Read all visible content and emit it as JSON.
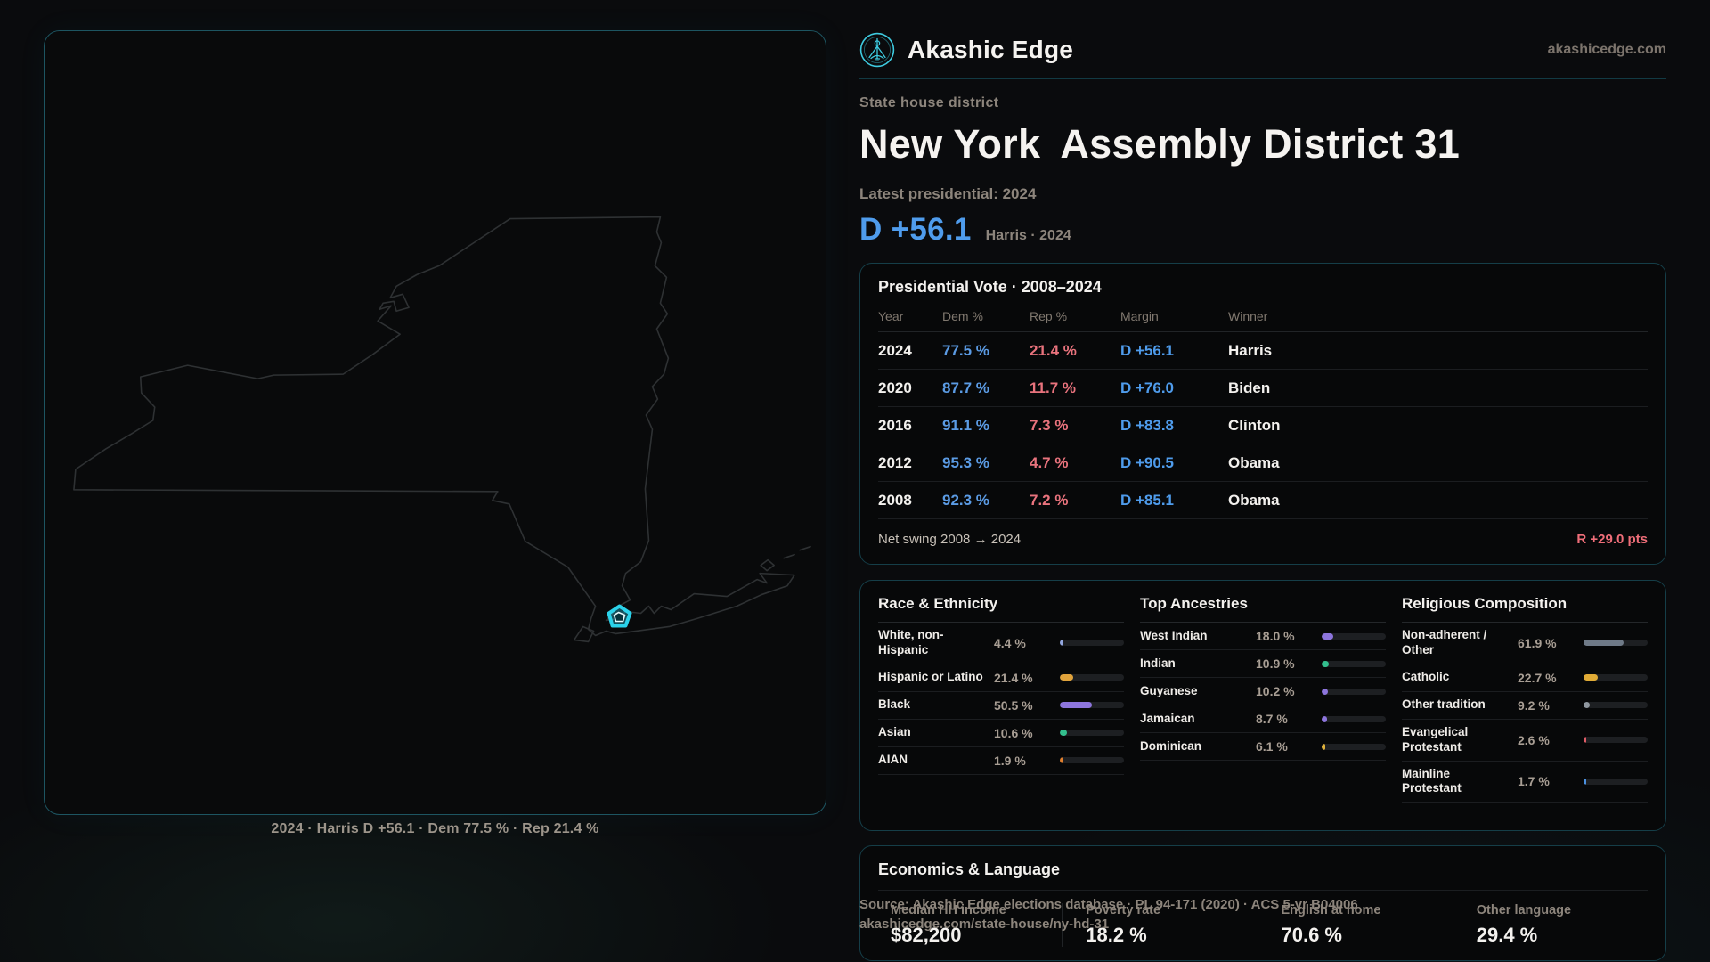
{
  "brand": {
    "name": "Akashic Edge",
    "domain": "akashicedge.com"
  },
  "header": {
    "kicker": "State house district",
    "title_parts": [
      "New York",
      "Assembly District 31"
    ],
    "latest_label": "Latest presidential: 2024",
    "headline_margin": "D +56.1",
    "headline_detail": "Harris · 2024"
  },
  "map": {
    "region": "new-york-state",
    "caption": "2024 · Harris D +56.1 · Dem 77.5 % · Rep 21.4 %"
  },
  "presidential": {
    "title": "Presidential Vote · 2008–2024",
    "columns": [
      "Year",
      "Dem %",
      "Rep %",
      "Margin",
      "Winner"
    ],
    "rows": [
      {
        "year": "2024",
        "dem": "77.5 %",
        "rep": "21.4 %",
        "margin": "D +56.1",
        "winner": "Harris"
      },
      {
        "year": "2020",
        "dem": "87.7 %",
        "rep": "11.7 %",
        "margin": "D +76.0",
        "winner": "Biden"
      },
      {
        "year": "2016",
        "dem": "91.1 %",
        "rep": "7.3 %",
        "margin": "D +83.8",
        "winner": "Clinton"
      },
      {
        "year": "2012",
        "dem": "95.3 %",
        "rep": "4.7 %",
        "margin": "D +90.5",
        "winner": "Obama"
      },
      {
        "year": "2008",
        "dem": "92.3 %",
        "rep": "7.2 %",
        "margin": "D +85.1",
        "winner": "Obama"
      }
    ],
    "net_swing_label": "Net swing 2008 → 2024",
    "net_swing_value": "R +29.0 pts"
  },
  "demographics": {
    "columns": [
      {
        "id": "race",
        "title": "Race & Ethnicity",
        "rows": [
          {
            "label": "White, non-Hispanic",
            "value": "4.4 %",
            "pct": 4.4,
            "color": "#93a7e0"
          },
          {
            "label": "Hispanic or Latino",
            "value": "21.4 %",
            "pct": 21.4,
            "color": "#e0a33c"
          },
          {
            "label": "Black",
            "value": "50.5 %",
            "pct": 50.5,
            "color": "#8d75dd"
          },
          {
            "label": "Asian",
            "value": "10.6 %",
            "pct": 10.6,
            "color": "#33bf8e"
          },
          {
            "label": "AIAN",
            "value": "1.9 %",
            "pct": 1.9,
            "color": "#e07f2e"
          }
        ]
      },
      {
        "id": "ancestries",
        "title": "Top Ancestries",
        "rows": [
          {
            "label": "West Indian",
            "value": "18.0 %",
            "pct": 18.0,
            "color": "#8d75dd"
          },
          {
            "label": "Indian",
            "value": "10.9 %",
            "pct": 10.9,
            "color": "#33bf8e"
          },
          {
            "label": "Guyanese",
            "value": "10.2 %",
            "pct": 10.2,
            "color": "#8d75dd"
          },
          {
            "label": "Jamaican",
            "value": "8.7 %",
            "pct": 8.7,
            "color": "#8d75dd"
          },
          {
            "label": "Dominican",
            "value": "6.1 %",
            "pct": 6.1,
            "color": "#e0b23c"
          }
        ]
      },
      {
        "id": "religion",
        "title": "Religious Composition",
        "rows": [
          {
            "label": "Non-adherent / Other",
            "value": "61.9 %",
            "pct": 61.9,
            "color": "#6f7a88"
          },
          {
            "label": "Catholic",
            "value": "22.7 %",
            "pct": 22.7,
            "color": "#e0ab36"
          },
          {
            "label": "Other tradition",
            "value": "9.2 %",
            "pct": 9.2,
            "color": "#8f979f"
          },
          {
            "label": "Evangelical Protestant",
            "value": "2.6 %",
            "pct": 2.6,
            "color": "#e05c66"
          },
          {
            "label": "Mainline Protestant",
            "value": "1.7 %",
            "pct": 1.7,
            "color": "#4a90e0"
          }
        ]
      }
    ]
  },
  "economics": {
    "title": "Economics & Language",
    "stats": [
      {
        "label": "Median HH income",
        "value": "$82,200"
      },
      {
        "label": "Poverty rate",
        "value": "18.2 %"
      },
      {
        "label": "English at home",
        "value": "70.6 %"
      },
      {
        "label": "Other language",
        "value": "29.4 %"
      }
    ]
  },
  "source": {
    "line1": "Source: Akashic Edge elections database · PL 94-171 (2020) · ACS 5-yr B04006",
    "line2": "akashicedge.com/state-house/ny-hd-31"
  },
  "colors": {
    "accent": "#2bd2ea",
    "dem_blue": "#5b9be4",
    "rep_red": "#e9737d",
    "headline_blue": "#4f9cec",
    "swing_red": "#ef6e79"
  }
}
